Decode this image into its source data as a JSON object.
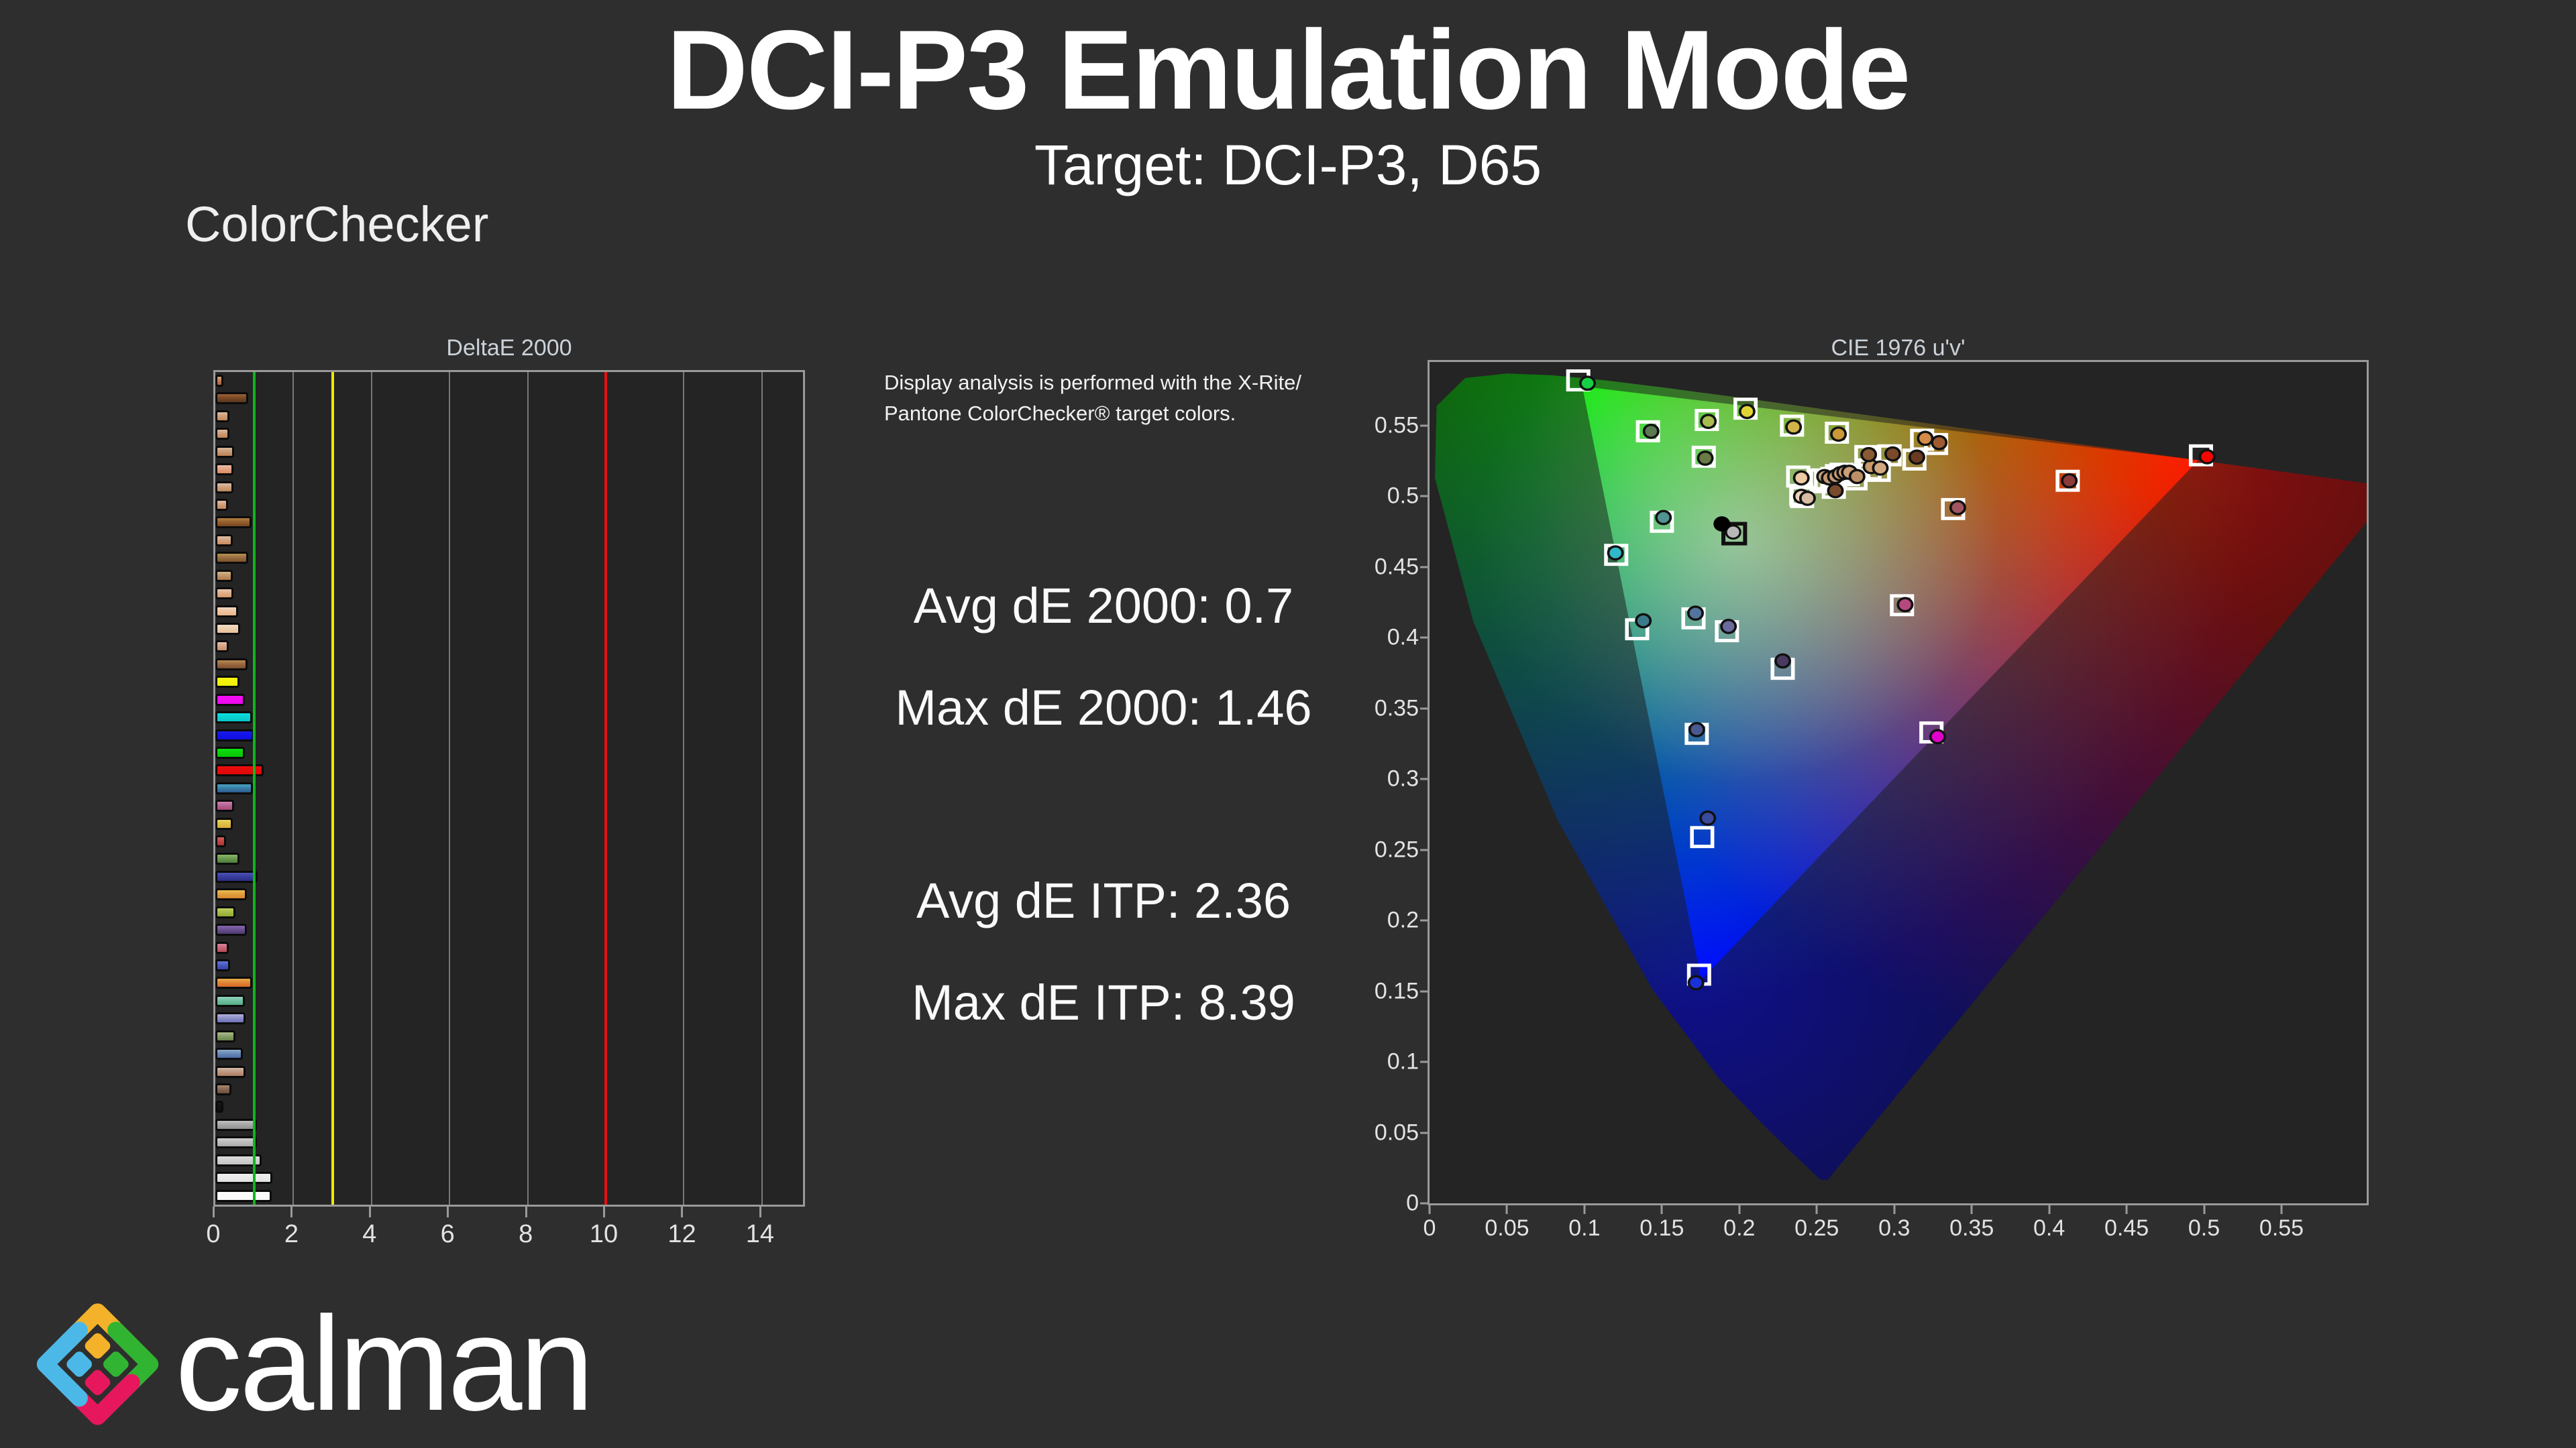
{
  "page": {
    "title": "DCI-P3 Emulation Mode",
    "subtitle": "Target: DCI-P3, D65",
    "section_label": "ColorChecker",
    "background": "#2e2e2e"
  },
  "info_note": {
    "line1": "Display analysis is performed with the X-Rite/",
    "line2": "Pantone ColorChecker® target colors."
  },
  "metrics": {
    "avg_de2000": "Avg dE 2000: 0.7",
    "max_de2000": "Max dE 2000: 1.46",
    "avg_deitp": "Avg dE ITP: 2.36",
    "max_deitp": "Max dE ITP: 8.39"
  },
  "logo": {
    "text": "calman",
    "icon_colors": {
      "top": "#f3b229",
      "right": "#31b431",
      "bottom": "#e7175d",
      "left": "#4cb8e8"
    }
  },
  "chart_data": [
    {
      "type": "bar",
      "title": "DeltaE 2000",
      "orientation": "horizontal",
      "xlim": [
        0,
        15.05
      ],
      "x_ticks": [
        "0",
        "2",
        "4",
        "6",
        "8",
        "10",
        "12",
        "14"
      ],
      "grid_color": "#787878",
      "reference_lines": [
        {
          "value": 1,
          "color": "#12b41e"
        },
        {
          "value": 3,
          "color": "#f0e800"
        },
        {
          "value": 10,
          "color": "#e51010"
        }
      ],
      "bars": [
        {
          "value": 0.2,
          "color": "#c08055"
        },
        {
          "value": 0.85,
          "color": "#7a4a28"
        },
        {
          "value": 0.36,
          "color": "#d0a07a"
        },
        {
          "value": 0.36,
          "color": "#cf9d78"
        },
        {
          "value": 0.48,
          "color": "#c99c76"
        },
        {
          "value": 0.46,
          "color": "#e2a384"
        },
        {
          "value": 0.46,
          "color": "#cda27f"
        },
        {
          "value": 0.32,
          "color": "#d2a07c"
        },
        {
          "value": 0.93,
          "color": "#95612f"
        },
        {
          "value": 0.44,
          "color": "#d4a582"
        },
        {
          "value": 0.84,
          "color": "#9a7040"
        },
        {
          "value": 0.44,
          "color": "#c1976b"
        },
        {
          "value": 0.46,
          "color": "#e0af8a"
        },
        {
          "value": 0.59,
          "color": "#eec5a2"
        },
        {
          "value": 0.64,
          "color": "#edcfae"
        },
        {
          "value": 0.35,
          "color": "#d6a686"
        },
        {
          "value": 0.82,
          "color": "#9a6a40"
        },
        {
          "value": 0.62,
          "color": "#f2f20a"
        },
        {
          "value": 0.75,
          "color": "#f20af2"
        },
        {
          "value": 0.95,
          "color": "#0ad2d2"
        },
        {
          "value": 0.99,
          "color": "#1414e6"
        },
        {
          "value": 0.76,
          "color": "#0ad20a"
        },
        {
          "value": 1.24,
          "color": "#e60a0a"
        },
        {
          "value": 0.97,
          "color": "#3a80a8"
        },
        {
          "value": 0.48,
          "color": "#b86490"
        },
        {
          "value": 0.45,
          "color": "#e0c048"
        },
        {
          "value": 0.28,
          "color": "#c04848"
        },
        {
          "value": 0.62,
          "color": "#6a9a50"
        },
        {
          "value": 1.08,
          "color": "#3a3f9e"
        },
        {
          "value": 0.8,
          "color": "#e0a040"
        },
        {
          "value": 0.51,
          "color": "#a8bc48"
        },
        {
          "value": 0.8,
          "color": "#6a5090"
        },
        {
          "value": 0.34,
          "color": "#c86878"
        },
        {
          "value": 0.38,
          "color": "#4a5cc0"
        },
        {
          "value": 0.94,
          "color": "#e08838"
        },
        {
          "value": 0.76,
          "color": "#72c0a2"
        },
        {
          "value": 0.77,
          "color": "#8e90c8"
        },
        {
          "value": 0.51,
          "color": "#8aa06a"
        },
        {
          "value": 0.7,
          "color": "#6a8ab8"
        },
        {
          "value": 0.77,
          "color": "#c09a82"
        },
        {
          "value": 0.42,
          "color": "#8a6a55"
        },
        {
          "value": 0.2,
          "color": "#141414"
        },
        {
          "value": 1.06,
          "color": "#a8a8a8"
        },
        {
          "value": 1.06,
          "color": "#bcbcbc"
        },
        {
          "value": 1.19,
          "color": "#d0d0d0"
        },
        {
          "value": 1.46,
          "color": "#e9e9e9"
        },
        {
          "value": 1.44,
          "color": "#fbfbfb"
        }
      ]
    },
    {
      "type": "scatter",
      "title": "CIE 1976 u'v'",
      "xlim": [
        0,
        0.605
      ],
      "ylim": [
        0,
        0.595
      ],
      "x_ticks": [
        "0",
        "0.05",
        "0.1",
        "0.15",
        "0.2",
        "0.25",
        "0.3",
        "0.35",
        "0.4",
        "0.45",
        "0.5",
        "0.55"
      ],
      "y_ticks": [
        "0",
        "0.05",
        "0.1",
        "0.15",
        "0.2",
        "0.25",
        "0.3",
        "0.35",
        "0.4",
        "0.45",
        "0.5",
        "0.55"
      ],
      "gamut_triangle_p3": {
        "red": [
          0.4964,
          0.5256
        ],
        "green": [
          0.0986,
          0.5777
        ],
        "blue": [
          0.1754,
          0.1579
        ]
      },
      "spectral_locus": [
        [
          0.2569,
          0.0165
        ],
        [
          0.2522,
          0.0169
        ],
        [
          0.2347,
          0.035
        ],
        [
          0.2161,
          0.0549
        ],
        [
          0.1877,
          0.0871
        ],
        [
          0.1441,
          0.151
        ],
        [
          0.0828,
          0.2708
        ],
        [
          0.0282,
          0.4117
        ],
        [
          0.0035,
          0.5131
        ],
        [
          0.0046,
          0.5639
        ],
        [
          0.0231,
          0.5837
        ],
        [
          0.0501,
          0.5868
        ],
        [
          0.0792,
          0.5856
        ],
        [
          0.1127,
          0.5821
        ],
        [
          0.1531,
          0.5766
        ],
        [
          0.2026,
          0.5694
        ],
        [
          0.2623,
          0.5604
        ],
        [
          0.3315,
          0.5501
        ],
        [
          0.4035,
          0.5393
        ],
        [
          0.4692,
          0.5296
        ],
        [
          0.5203,
          0.5219
        ],
        [
          0.583,
          0.5125
        ],
        [
          0.6234,
          0.5065
        ]
      ],
      "white_point": {
        "measured_dot": [
          0.1887,
          0.4805
        ],
        "target_square": [
          0.1967,
          0.4736
        ],
        "target_dot": [
          0.196,
          0.4747
        ],
        "target_dot_color": "#b8b8b8"
      },
      "points": [
        {
          "tu": 0.096,
          "tv": 0.582,
          "mu": 0.102,
          "mv": 0.58,
          "c": "#17cf45"
        },
        {
          "tu": 0.204,
          "tv": 0.562,
          "mu": 0.205,
          "mv": 0.56,
          "c": "#e0d435"
        },
        {
          "tu": 0.179,
          "tv": 0.554,
          "mu": 0.18,
          "mv": 0.553,
          "c": "#a8bc50"
        },
        {
          "tu": 0.141,
          "tv": 0.546,
          "mu": 0.143,
          "mv": 0.546,
          "c": "#5a7a52"
        },
        {
          "tu": 0.234,
          "tv": 0.55,
          "mu": 0.235,
          "mv": 0.549,
          "c": "#d0b448"
        },
        {
          "tu": 0.263,
          "tv": 0.545,
          "mu": 0.264,
          "mv": 0.544,
          "c": "#cc9838"
        },
        {
          "tu": 0.177,
          "tv": 0.528,
          "mu": 0.178,
          "mv": 0.527,
          "c": "#6a7a44"
        },
        {
          "tu": 0.15,
          "tv": 0.482,
          "mu": 0.151,
          "mv": 0.485,
          "c": "#509390"
        },
        {
          "tu": 0.1205,
          "tv": 0.4586,
          "mu": 0.12,
          "mv": 0.46,
          "c": "#30b8c8"
        },
        {
          "tu": 0.1704,
          "tv": 0.4137,
          "mu": 0.1717,
          "mv": 0.4174,
          "c": "#52749e"
        },
        {
          "tu": 0.134,
          "tv": 0.406,
          "mu": 0.138,
          "mv": 0.412,
          "c": "#3a7a8a"
        },
        {
          "tu": 0.192,
          "tv": 0.4046,
          "mu": 0.193,
          "mv": 0.408,
          "c": "#6a6a9c"
        },
        {
          "tu": 0.228,
          "tv": 0.378,
          "mu": 0.228,
          "mv": 0.3836,
          "c": "#483a60"
        },
        {
          "tu": 0.305,
          "tv": 0.423,
          "mu": 0.307,
          "mv": 0.4234,
          "c": "#b5487e"
        },
        {
          "tu": 0.1725,
          "tv": 0.332,
          "mu": 0.1725,
          "mv": 0.335,
          "c": "#4a5a90"
        },
        {
          "tu": 0.176,
          "tv": 0.259,
          "mu": 0.1796,
          "mv": 0.2724,
          "c": "#3a4a9e"
        },
        {
          "tu": 0.174,
          "tv": 0.1617,
          "mu": 0.172,
          "mv": 0.156,
          "c": "#1a30d8"
        },
        {
          "tu": 0.324,
          "tv": 0.333,
          "mu": 0.328,
          "mv": 0.33,
          "c": "#e000cc"
        },
        {
          "tu": 0.498,
          "tv": 0.529,
          "mu": 0.502,
          "mv": 0.528,
          "c": "#f50500"
        },
        {
          "tu": 0.412,
          "tv": 0.511,
          "mu": 0.413,
          "mv": 0.511,
          "c": "#8e3a3a"
        },
        {
          "tu": 0.338,
          "tv": 0.491,
          "mu": 0.341,
          "mv": 0.492,
          "c": "#a05560"
        },
        {
          "tu": 0.238,
          "tv": 0.514,
          "mu": 0.24,
          "mv": 0.513,
          "c": "#eccaa4"
        },
        {
          "tu": 0.24,
          "tv": 0.501,
          "mu": 0.24,
          "mv": 0.5,
          "c": "#ecd2b8"
        },
        {
          "tu": 0.2405,
          "tv": 0.4995,
          "mu": 0.244,
          "mv": 0.4986,
          "c": "#d8bca4"
        },
        {
          "tu": 0.253,
          "tv": 0.512,
          "mu": 0.255,
          "mv": 0.514,
          "c": "#caa27c"
        },
        {
          "tu": 0.256,
          "tv": 0.51,
          "mu": 0.258,
          "mv": 0.513,
          "c": "#c89a72"
        },
        {
          "tu": 0.26,
          "tv": 0.513,
          "mu": 0.262,
          "mv": 0.514,
          "c": "#c59a76"
        },
        {
          "tu": 0.263,
          "tv": 0.515,
          "mu": 0.265,
          "mv": 0.516,
          "c": "#cc9d72"
        },
        {
          "tu": 0.266,
          "tv": 0.516,
          "mu": 0.268,
          "mv": 0.517,
          "c": "#d0a276"
        },
        {
          "tu": 0.27,
          "tv": 0.515,
          "mu": 0.271,
          "mv": 0.517,
          "c": "#caa077"
        },
        {
          "tu": 0.275,
          "tv": 0.512,
          "mu": 0.276,
          "mv": 0.514,
          "c": "#bd8f66"
        },
        {
          "tu": 0.261,
          "tv": 0.506,
          "mu": 0.262,
          "mv": 0.504,
          "c": "#7a4a2e"
        },
        {
          "tu": 0.284,
          "tv": 0.519,
          "mu": 0.285,
          "mv": 0.521,
          "c": "#c89a6a"
        },
        {
          "tu": 0.282,
          "tv": 0.5285,
          "mu": 0.2835,
          "mv": 0.5295,
          "c": "#8a5a32"
        },
        {
          "tu": 0.297,
          "tv": 0.529,
          "mu": 0.299,
          "mv": 0.53,
          "c": "#7a4a28"
        },
        {
          "tu": 0.29,
          "tv": 0.518,
          "mu": 0.291,
          "mv": 0.52,
          "c": "#d2a882"
        },
        {
          "tu": 0.318,
          "tv": 0.54,
          "mu": 0.32,
          "mv": 0.541,
          "c": "#d28a4a"
        },
        {
          "tu": 0.327,
          "tv": 0.537,
          "mu": 0.329,
          "mv": 0.538,
          "c": "#a05a32"
        },
        {
          "tu": 0.313,
          "tv": 0.526,
          "mu": 0.3146,
          "mv": 0.5277,
          "c": "#6a3a22"
        }
      ]
    }
  ]
}
